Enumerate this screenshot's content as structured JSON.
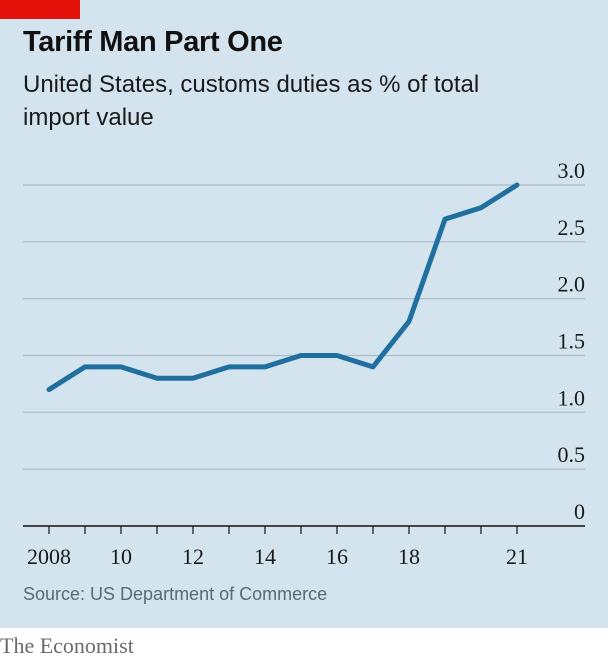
{
  "header": {
    "title": "Tariff Man Part One",
    "subtitle": "United States, customs duties as % of total import value"
  },
  "footer": {
    "source": "Source: US Department of Commerce",
    "brand": "The Economist"
  },
  "colors": {
    "accent": "#e3120b",
    "line": "#1f6f9f",
    "background": "#d4e4ee",
    "grid": "#a9bcc8"
  },
  "chart_data": {
    "type": "line",
    "title": "Tariff Man Part One",
    "subtitle": "United States, customs duties as % of total import value",
    "x": [
      2008,
      2009,
      2010,
      2011,
      2012,
      2013,
      2014,
      2015,
      2016,
      2017,
      2018,
      2019,
      2020,
      2021
    ],
    "series": [
      {
        "values": [
          1.2,
          1.4,
          1.4,
          1.3,
          1.3,
          1.4,
          1.4,
          1.5,
          1.5,
          1.4,
          1.8,
          2.7,
          2.8,
          3.0
        ]
      }
    ],
    "xlim": [
      2008,
      2021
    ],
    "ylim": [
      0,
      3.0
    ],
    "x_tick_labels": [
      "2008",
      "10",
      "12",
      "14",
      "16",
      "18",
      "21"
    ],
    "x_tick_values": [
      2008,
      2010,
      2012,
      2014,
      2016,
      2018,
      2021
    ],
    "y_tick_labels": [
      "0",
      "0.5",
      "1.0",
      "1.5",
      "2.0",
      "2.5",
      "3.0"
    ],
    "y_tick_values": [
      0,
      0.5,
      1.0,
      1.5,
      2.0,
      2.5,
      3.0
    ],
    "y_axis_side": "right",
    "grid": true,
    "legend": "none"
  }
}
